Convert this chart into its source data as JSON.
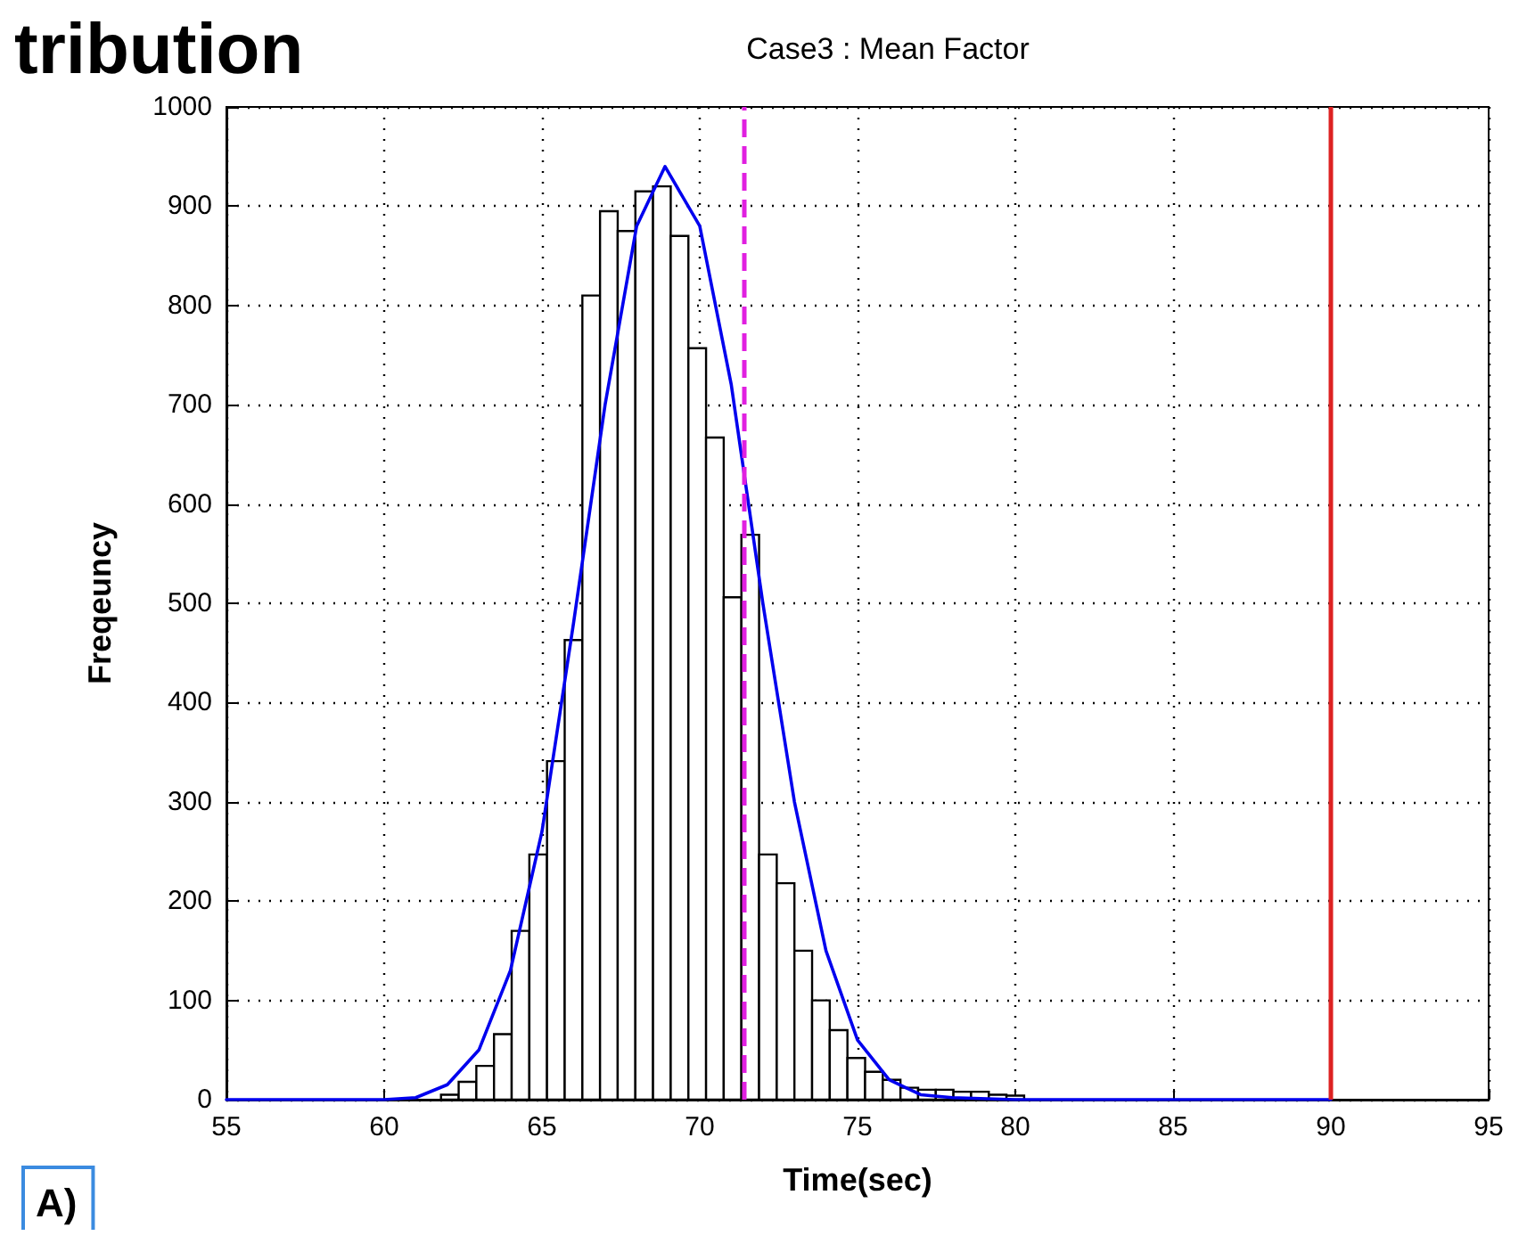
{
  "chart_data": {
    "type": "histogram",
    "title": "Case3 : Mean Factor",
    "xlabel": "Time(sec)",
    "ylabel": "Freqeuncy",
    "annotations": [
      "tribution",
      "A)"
    ],
    "series": [
      {
        "color": "#ffffff",
        "bins": [
          61.8,
          62.36,
          62.92,
          63.48,
          64.04,
          64.6,
          65.16,
          65.72,
          66.28,
          66.84,
          67.4,
          67.96,
          68.52,
          69.08,
          69.64,
          70.2,
          70.76,
          71.32,
          71.88,
          72.44,
          73.0,
          73.56,
          74.12,
          74.68,
          75.24,
          75.8,
          76.36,
          76.92,
          77.48,
          78.04,
          78.6,
          79.16,
          79.72,
          80.28
        ],
        "values": [
          5,
          18,
          34,
          66,
          170,
          247,
          341,
          463,
          810,
          895,
          875,
          915,
          920,
          870,
          757,
          667,
          506,
          569,
          247,
          218,
          150,
          100,
          70,
          42,
          28,
          20,
          12,
          10,
          10,
          8,
          8,
          5,
          4
        ]
      },
      {
        "type": "line",
        "color": "#0000ee",
        "x": [
          55,
          60,
          61,
          62,
          63,
          64,
          65,
          66,
          67,
          68,
          68.9,
          70,
          71,
          72,
          73,
          74,
          75,
          76,
          77,
          78,
          80,
          90
        ],
        "values": [
          0,
          0,
          2,
          15,
          50,
          130,
          270,
          480,
          700,
          880,
          940,
          880,
          720,
          500,
          300,
          150,
          60,
          20,
          5,
          2,
          0,
          0
        ]
      }
    ],
    "ref_lines": [
      {
        "axis": "x",
        "value": 71.4,
        "color": "#e020e0",
        "line_style": "dashed"
      },
      {
        "axis": "x",
        "value": 90,
        "color": "#dd2222",
        "line_style": "solid"
      }
    ],
    "xlim": [
      55,
      95
    ],
    "xticks": [
      55,
      60,
      65,
      70,
      75,
      80,
      85,
      90,
      95
    ],
    "ylim": [
      0,
      1000
    ],
    "yticks": [
      0,
      100,
      200,
      300,
      400,
      500,
      600,
      700,
      800,
      900,
      1000
    ],
    "grid": true
  }
}
